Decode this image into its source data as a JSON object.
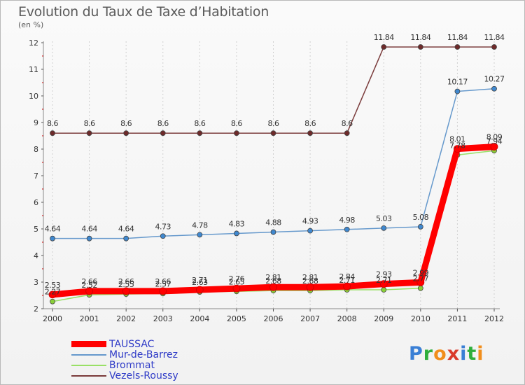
{
  "title": "Evolution du Taux de Taxe d’Habitation",
  "unit_label": "(en %)",
  "logo": {
    "text": "Proxiti",
    "letters": [
      "P",
      "r",
      "o",
      "x",
      "i",
      "t",
      "i"
    ],
    "colors": [
      "#3a7fd5",
      "#2fae3c",
      "#f18e1c",
      "#d93a2b",
      "#3a7fd5",
      "#2fae3c",
      "#f18e1c"
    ]
  },
  "chart_data": {
    "type": "line",
    "x": [
      "2000",
      "2001",
      "2002",
      "2003",
      "2004",
      "2005",
      "2006",
      "2007",
      "2008",
      "2009",
      "2010",
      "2011",
      "2012"
    ],
    "ylim": [
      2,
      12
    ],
    "yticks": [
      "2",
      "3",
      "4",
      "5",
      "6",
      "7",
      "8",
      "9",
      "10",
      "11",
      "12"
    ],
    "grid": "vertical-dashed",
    "legend_position": "bottom-left",
    "series": [
      {
        "name": "TAUSSAC",
        "color": "#ff0000",
        "marker": "#ff0000",
        "values": [
          2.53,
          2.66,
          2.66,
          2.66,
          2.71,
          2.76,
          2.81,
          2.81,
          2.84,
          2.93,
          2.99,
          8.01,
          8.09
        ],
        "labels": [
          "2.53",
          "2.66",
          "2.66",
          "2.66",
          "2.71",
          "2.76",
          "2.81",
          "2.81",
          "2.84",
          "2.93",
          "2.99",
          "8.01",
          "8.09"
        ]
      },
      {
        "name": "Mur-de-Barrez",
        "color": "#6699cc",
        "marker": "#3f88cf",
        "values": [
          4.64,
          4.64,
          4.64,
          4.73,
          4.78,
          4.83,
          4.88,
          4.93,
          4.98,
          5.03,
          5.08,
          10.17,
          10.27
        ],
        "labels": [
          "4.64",
          "4.64",
          "4.64",
          "4.73",
          "4.78",
          "4.83",
          "4.88",
          "4.93",
          "4.98",
          "5.03",
          "5.08",
          "10.17",
          "10.27"
        ]
      },
      {
        "name": "Brommat",
        "color": "#99e066",
        "marker": "#8ad038",
        "values": [
          2.27,
          2.52,
          2.55,
          2.57,
          2.63,
          2.65,
          2.68,
          2.68,
          2.71,
          2.71,
          2.77,
          7.78,
          7.94
        ],
        "labels": [
          "2.27",
          "2.52",
          "2.55",
          "2.57",
          "2.63",
          "2.65",
          "2.68",
          "2.68",
          "2.71",
          "2.71",
          "2.77",
          "7.78",
          "7.94"
        ]
      },
      {
        "name": "Vezels-Roussy",
        "color": "#7a3b3b",
        "marker": "#6e2a2a",
        "values": [
          8.6,
          8.6,
          8.6,
          8.6,
          8.6,
          8.6,
          8.6,
          8.6,
          8.6,
          11.84,
          11.84,
          11.84,
          11.84
        ],
        "labels": [
          "8.6",
          "8.6",
          "8.6",
          "8.6",
          "8.6",
          "8.6",
          "8.6",
          "8.6",
          "8.6",
          "11.84",
          "11.84",
          "11.84",
          "11.84"
        ]
      }
    ]
  }
}
